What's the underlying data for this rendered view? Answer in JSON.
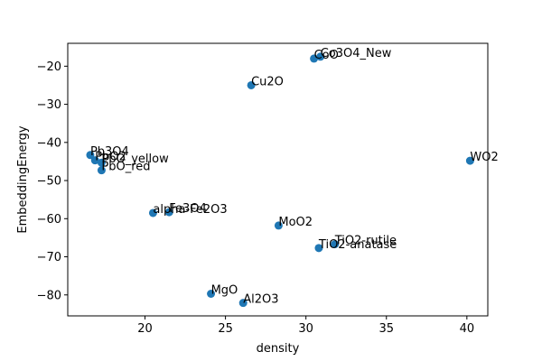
{
  "chart_data": {
    "type": "scatter",
    "title": "",
    "xlabel": "density",
    "ylabel": "EmbeddingEnergy",
    "xlim": [
      15.2,
      41.3
    ],
    "ylim": [
      -85.5,
      -14.0
    ],
    "xticks": [
      20,
      25,
      30,
      35,
      40
    ],
    "yticks": [
      -80,
      -70,
      -60,
      -50,
      -40,
      -30,
      -20
    ],
    "grid": false,
    "marker_color": "#1f77b4",
    "points": [
      {
        "label": "Co3O4_New",
        "x": 30.9,
        "y": -17.5
      },
      {
        "label": "CoO",
        "x": 30.5,
        "y": -18.0
      },
      {
        "label": "Cu2O",
        "x": 26.6,
        "y": -25.0
      },
      {
        "label": "Pb3O4",
        "x": 16.6,
        "y": -43.3
      },
      {
        "label": "PbO2",
        "x": 16.9,
        "y": -44.7
      },
      {
        "label": "PbO_yellow",
        "x": 17.3,
        "y": -45.3
      },
      {
        "label": "PbO_red",
        "x": 17.3,
        "y": -47.3
      },
      {
        "label": "WO2",
        "x": 40.2,
        "y": -44.8
      },
      {
        "label": "alpha-Fe2O3",
        "x": 20.5,
        "y": -58.5
      },
      {
        "label": "Fe3O4",
        "x": 21.5,
        "y": -58.3
      },
      {
        "label": "MoO2",
        "x": 28.3,
        "y": -61.8
      },
      {
        "label": "TiO2-rutile",
        "x": 31.8,
        "y": -66.7
      },
      {
        "label": "TiO2-anatase",
        "x": 30.8,
        "y": -67.7
      },
      {
        "label": "MgO",
        "x": 24.1,
        "y": -79.7
      },
      {
        "label": "Al2O3",
        "x": 26.1,
        "y": -82.1
      }
    ]
  }
}
